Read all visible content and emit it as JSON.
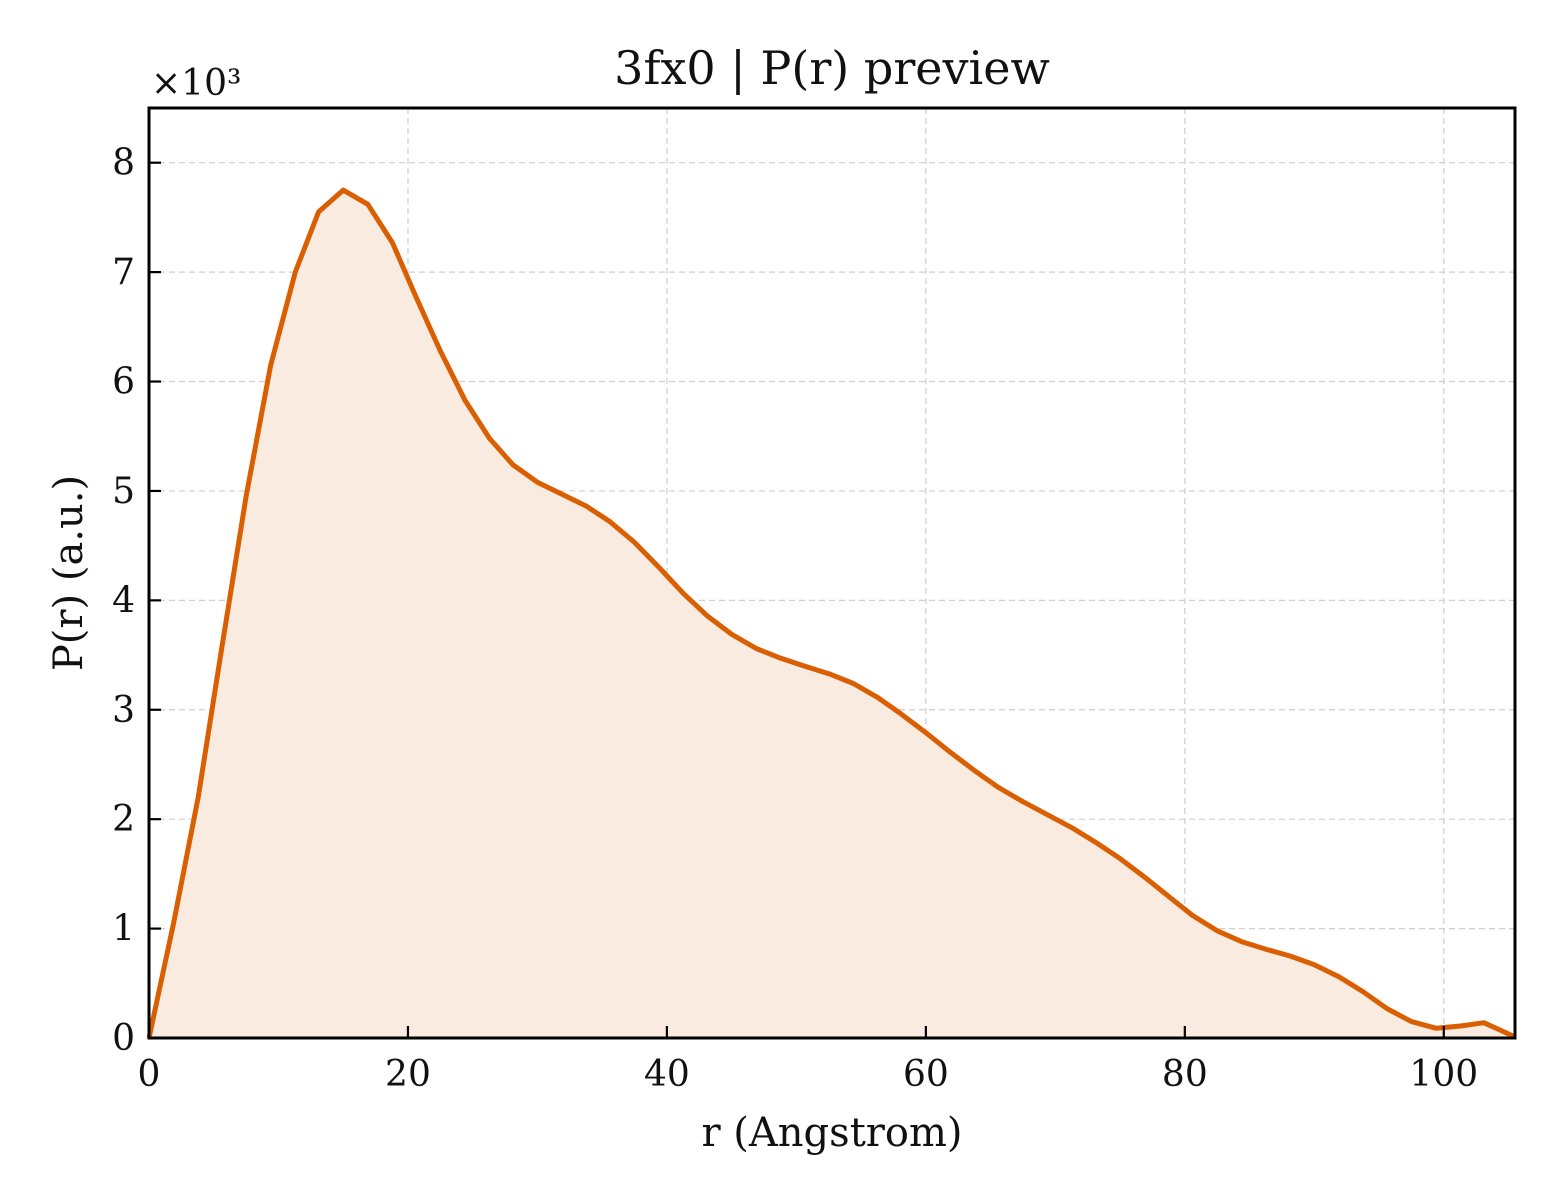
{
  "chart_data": {
    "type": "area",
    "title": "3fx0 | P(r) preview",
    "xlabel": "r (Angstrom)",
    "ylabel": "P(r) (a.u.)",
    "y_multiplier_label": "×10³",
    "xlim": [
      0,
      105.5
    ],
    "ylim": [
      0,
      8.5
    ],
    "x_ticks": [
      0,
      20,
      40,
      60,
      80,
      100
    ],
    "y_ticks": [
      0,
      1,
      2,
      3,
      4,
      5,
      6,
      7,
      8
    ],
    "grid": true,
    "line_color": "#d95f02",
    "fill_color": "#f9ebe0",
    "series": [
      {
        "x": [
          0,
          1.9,
          3.8,
          5.6,
          7.5,
          9.4,
          11.3,
          13.1,
          15.0,
          16.9,
          18.8,
          20.6,
          22.5,
          24.4,
          26.3,
          28.1,
          30.0,
          31.9,
          33.8,
          35.6,
          37.5,
          39.4,
          41.3,
          43.1,
          45.0,
          46.9,
          48.8,
          50.6,
          52.5,
          54.4,
          56.3,
          58.1,
          60.0,
          61.9,
          63.8,
          65.6,
          67.5,
          69.4,
          71.3,
          73.1,
          75.0,
          76.9,
          78.8,
          80.6,
          82.5,
          84.4,
          86.3,
          88.1,
          90.0,
          91.9,
          93.8,
          95.6,
          97.5,
          99.4,
          101.3,
          103.1,
          105.5
        ],
        "values": [
          0,
          1.05,
          2.2,
          3.55,
          4.95,
          6.15,
          7.0,
          7.55,
          7.75,
          7.62,
          7.27,
          6.78,
          6.28,
          5.83,
          5.48,
          5.24,
          5.08,
          4.97,
          4.86,
          4.72,
          4.53,
          4.3,
          4.06,
          3.86,
          3.69,
          3.56,
          3.47,
          3.4,
          3.33,
          3.24,
          3.11,
          2.96,
          2.79,
          2.61,
          2.44,
          2.29,
          2.16,
          2.04,
          1.92,
          1.79,
          1.64,
          1.47,
          1.29,
          1.12,
          0.98,
          0.88,
          0.81,
          0.75,
          0.67,
          0.56,
          0.42,
          0.27,
          0.15,
          0.09,
          0.11,
          0.14,
          0.01
        ]
      }
    ]
  }
}
